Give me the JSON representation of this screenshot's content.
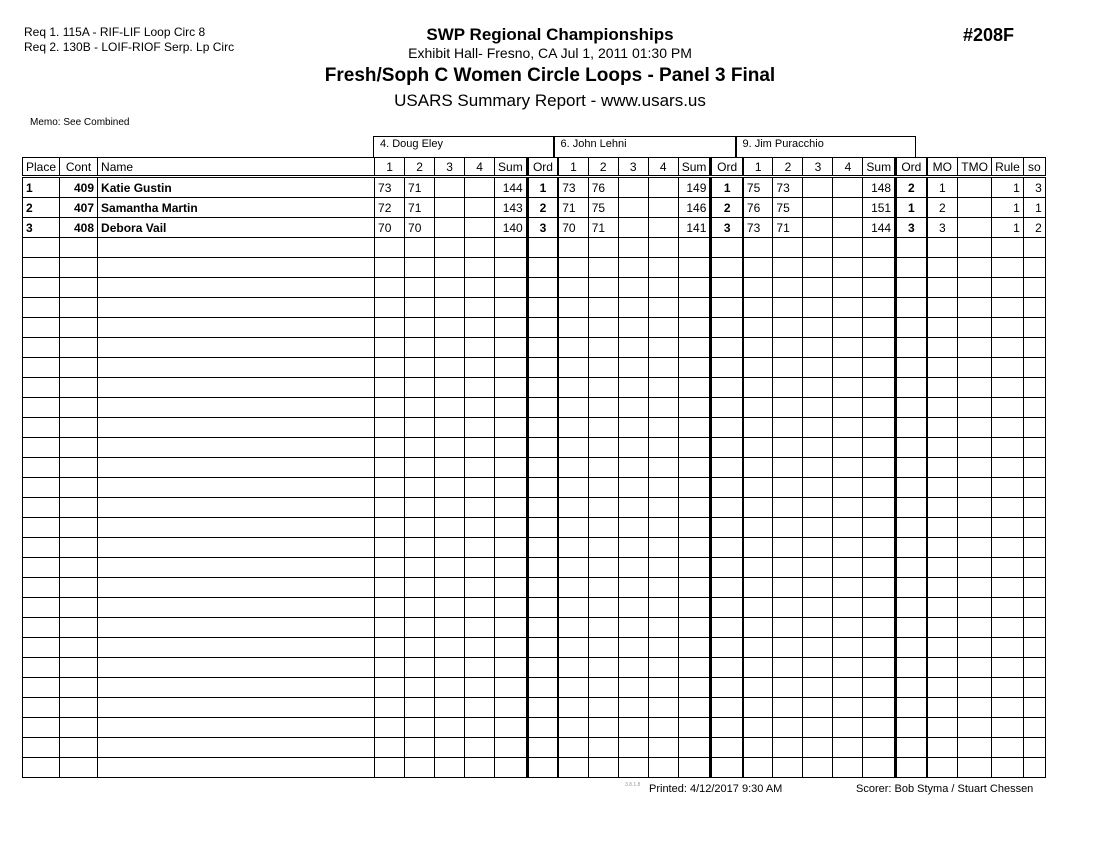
{
  "header": {
    "requirements": [
      "Req  1.  115A - RIF-LIF Loop Circ 8",
      "Req  2.  130B - LOIF-RIOF Serp. Lp Circ"
    ],
    "competition": "SWP Regional Championships",
    "venue_date": "Exhibit Hall-  Fresno, CA  Jul 1, 2011  01:30 PM",
    "event": "Fresh/Soph C Women Circle Loops - Panel 3 Final",
    "report": "USARS Summary Report - www.usars.us",
    "event_number": "#208F",
    "memo": "Memo: See Combined"
  },
  "judges": [
    "4.  Doug Eley",
    "6.  John Lehni",
    "9.  Jim Puracchio"
  ],
  "columns": {
    "place": "Place",
    "cont": "Cont",
    "name": "Name",
    "judge_cols": [
      "1",
      "2",
      "3",
      "4",
      "Sum",
      "Ord"
    ],
    "tail": [
      "MO",
      "TMO",
      "Rule",
      "so"
    ]
  },
  "rows": [
    {
      "place": "1",
      "cont": "409",
      "name": "Katie Gustin",
      "judges": [
        [
          "73",
          "71",
          "",
          "",
          "144",
          "1"
        ],
        [
          "73",
          "76",
          "",
          "",
          "149",
          "1"
        ],
        [
          "75",
          "73",
          "",
          "",
          "148",
          "2"
        ]
      ],
      "mo": "1",
      "tmo": "",
      "rule": "1",
      "so": "3"
    },
    {
      "place": "2",
      "cont": "407",
      "name": "Samantha Martin",
      "judges": [
        [
          "72",
          "71",
          "",
          "",
          "143",
          "2"
        ],
        [
          "71",
          "75",
          "",
          "",
          "146",
          "2"
        ],
        [
          "76",
          "75",
          "",
          "",
          "151",
          "1"
        ]
      ],
      "mo": "2",
      "tmo": "",
      "rule": "1",
      "so": "1"
    },
    {
      "place": "3",
      "cont": "408",
      "name": "Debora Vail",
      "judges": [
        [
          "70",
          "70",
          "",
          "",
          "140",
          "3"
        ],
        [
          "70",
          "71",
          "",
          "",
          "141",
          "3"
        ],
        [
          "73",
          "71",
          "",
          "",
          "144",
          "3"
        ]
      ],
      "mo": "3",
      "tmo": "",
      "rule": "1",
      "so": "2"
    }
  ],
  "footer": {
    "version": "3.8.1.8",
    "printed": "Printed:  4/12/2017  9:30 AM",
    "scorer": "Scorer:   Bob Styma / Stuart Chessen"
  }
}
